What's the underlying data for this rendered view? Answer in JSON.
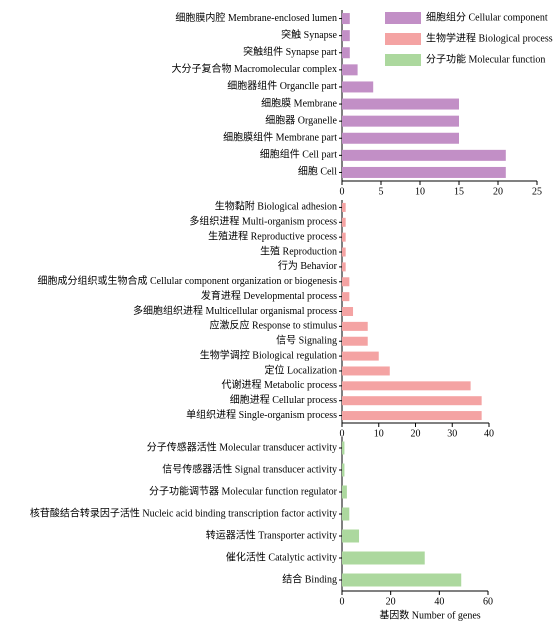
{
  "chart_data": [
    {
      "type": "barh",
      "categories": [
        "细胞膜内腔 Membrane-enclosed lumen",
        "突触 Synapse",
        "突触组件 Synapse part",
        "大分子复合物 Macromolecular complex",
        "细胞器组件 Organclle part",
        "细胞膜 Membrane",
        "细胞器 Organelle",
        "细胞膜组件 Membrane part",
        "细胞组件 Cell part",
        "细胞 Cell"
      ],
      "series": [
        {
          "name": "细胞组分 Cellular component",
          "color": "#c28fc6",
          "values": [
            1,
            1,
            1,
            2,
            4,
            15,
            15,
            15,
            21,
            21
          ]
        }
      ],
      "xlim": [
        0,
        25
      ],
      "xticks": [
        0,
        5,
        10,
        15,
        20,
        25
      ],
      "legend": "upper right"
    },
    {
      "type": "barh",
      "categories": [
        "生物黏附 Biological adhesion",
        "多组织进程 Multi-organism process",
        "生殖进程 Reproductive process",
        "生殖 Reproduction",
        "行为 Behavior",
        "细胞成分组织或生物合成 Cellular component organization or biogenesis",
        "发育进程 Developmental process",
        "多细胞组织进程 Multicellular organismal process",
        "应激反应 Response to stimulus",
        "信号 Signaling",
        "生物学调控 Biological regulation",
        "定位 Localization",
        "代谢进程 Metabolic process",
        "细胞进程 Cellular process",
        "单组织进程 Single-organism process"
      ],
      "series": [
        {
          "name": "生物学进程 Biological process",
          "color": "#f4a3a3",
          "values": [
            1,
            1,
            1,
            1,
            1,
            2,
            2,
            3,
            7,
            7,
            10,
            13,
            35,
            38,
            38
          ]
        }
      ],
      "xlim": [
        0,
        40
      ],
      "xticks": [
        0,
        10,
        20,
        30,
        40
      ]
    },
    {
      "type": "barh",
      "categories": [
        "分子传感器活性 Molecular transducer activity",
        "信号传感器活性 Signal transducer activity",
        "分子功能调节器 Molecular function regulator",
        "核苷酸结合转录因子活性 Nucleic acid binding transcription factor activity",
        "转运器活性 Transporter activity",
        "催化活性 Catalytic activity",
        "结合 Binding"
      ],
      "series": [
        {
          "name": "分子功能 Molecular function",
          "color": "#acd89e",
          "values": [
            1,
            1,
            2,
            3,
            7,
            34,
            49
          ]
        }
      ],
      "xlim": [
        0,
        60
      ],
      "xticks": [
        0,
        20,
        40,
        60
      ],
      "xlabel": "基因数 Number of genes"
    }
  ]
}
